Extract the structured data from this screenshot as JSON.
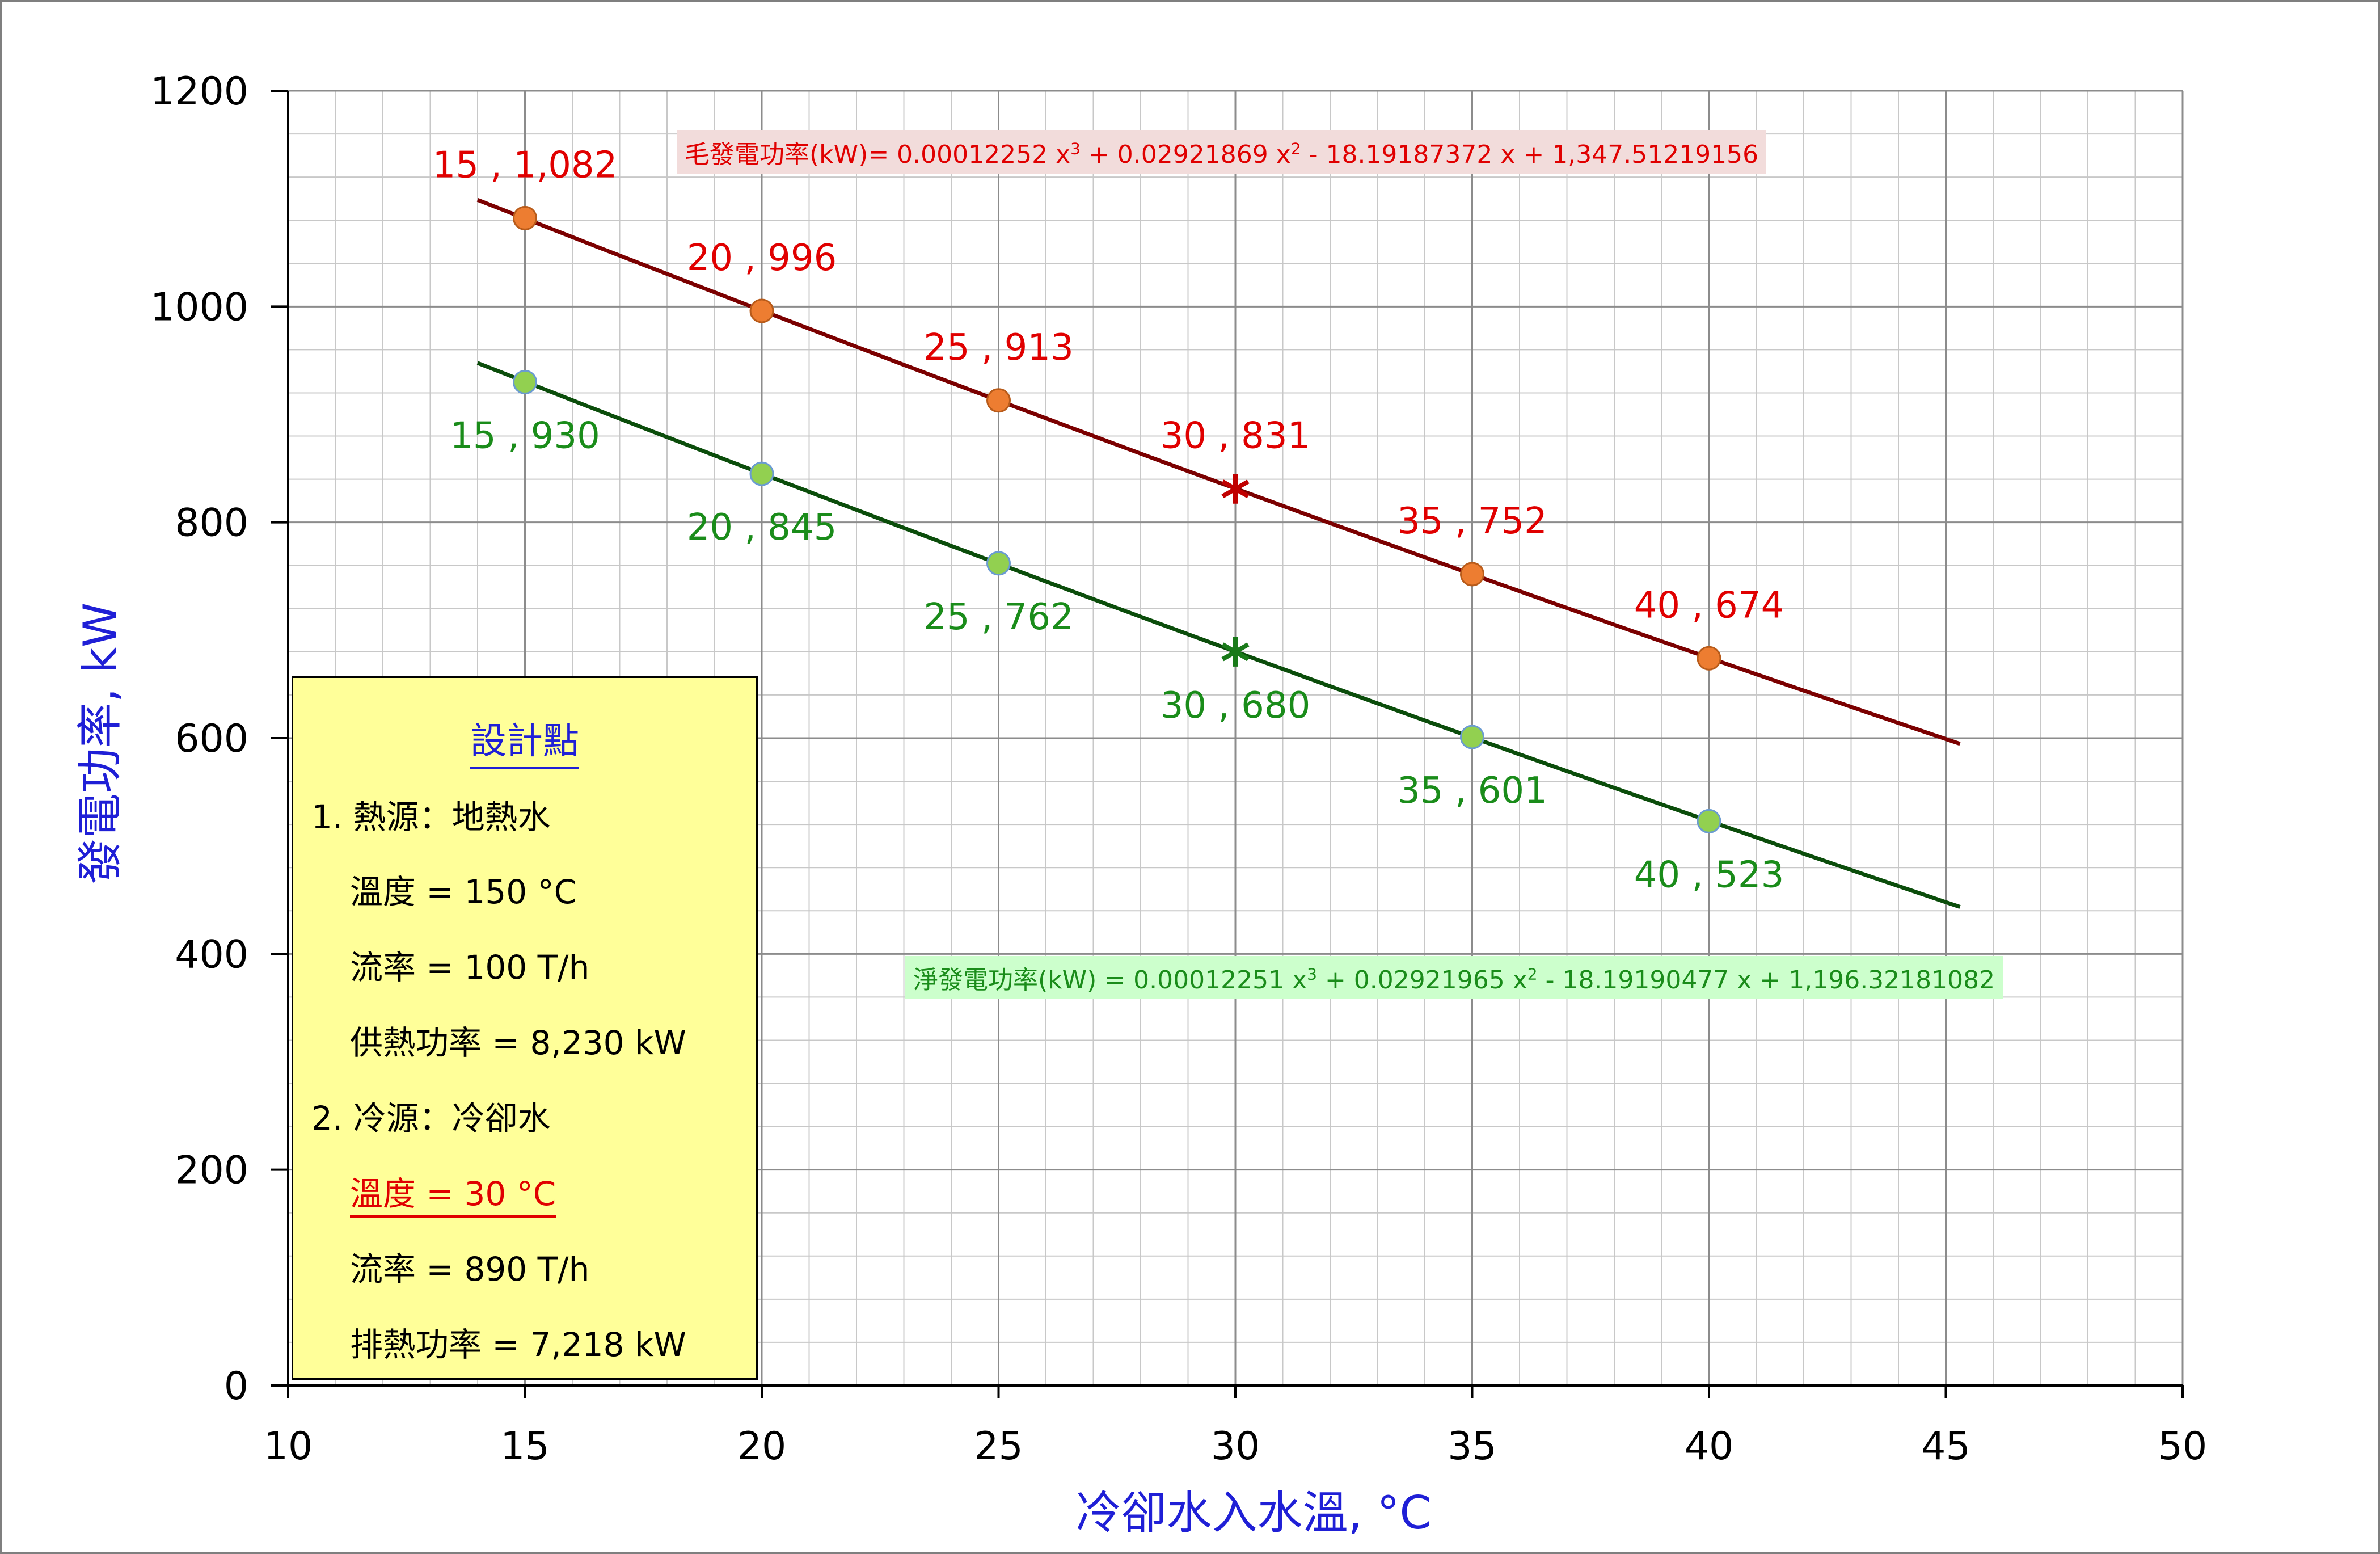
{
  "chart_data": {
    "type": "line",
    "xlabel": "冷卻水入水溫, °C",
    "ylabel": "發電功率, kW",
    "xlim": [
      10,
      50
    ],
    "ylim": [
      0,
      1200
    ],
    "xticks": [
      10,
      15,
      20,
      25,
      30,
      35,
      40,
      45,
      50
    ],
    "yticks": [
      0,
      200,
      400,
      600,
      800,
      1000,
      1200
    ],
    "grid": true,
    "series": [
      {
        "key": "gross",
        "color": "#7b0000",
        "marker_color": "#ed7d31",
        "label_color": "#e00000",
        "x": [
          15,
          20,
          25,
          30,
          35,
          40
        ],
        "y": [
          1082,
          996,
          913,
          831,
          752,
          674
        ],
        "labels": [
          "15 , 1,082",
          "20 , 996",
          "25 , 913",
          "30 , 831",
          "35 , 752",
          "40 , 674"
        ],
        "highlight_x": 30,
        "fit_range": [
          14,
          45.3
        ],
        "fit": [
          0.00012252,
          0.02921869,
          -18.19187372,
          1347.51219156
        ]
      },
      {
        "key": "net",
        "color": "#0b4d0b",
        "marker_color": "#92d050",
        "label_color": "#1a8c1a",
        "x": [
          15,
          20,
          25,
          30,
          35,
          40
        ],
        "y": [
          930,
          845,
          762,
          680,
          601,
          523
        ],
        "labels": [
          "15 , 930",
          "20 , 845",
          "25 , 762",
          "30 , 680",
          "35 , 601",
          "40 , 523"
        ],
        "highlight_x": 30,
        "fit_range": [
          14,
          45.3
        ],
        "fit": [
          0.00012251,
          0.02921965,
          -18.19190477,
          1196.32181082
        ]
      }
    ],
    "equations": {
      "gross_prefix": "毛發電功率(kW)= 0.00012252 x",
      "gross_mid1": " + 0.02921869 x",
      "gross_suffix": " - 18.19187372 x + 1,347.51219156",
      "net_prefix": "淨發電功率(kW) = 0.00012251 x",
      "net_mid1": " + 0.02921965 x",
      "net_suffix": " - 18.19190477 x + 1,196.32181082",
      "sup3": "3",
      "sup2": "2"
    }
  },
  "design_box": {
    "title": "設計點",
    "lines": [
      "1. 熱源：地熱水",
      "溫度 = 150 °C",
      "流率 = 100 T/h",
      "供熱功率 = 8,230 kW",
      "2. 冷源：冷卻水",
      "溫度 = 30 °C",
      "流率 = 890 T/h",
      "排熱功率 = 7,218 kW"
    ]
  }
}
